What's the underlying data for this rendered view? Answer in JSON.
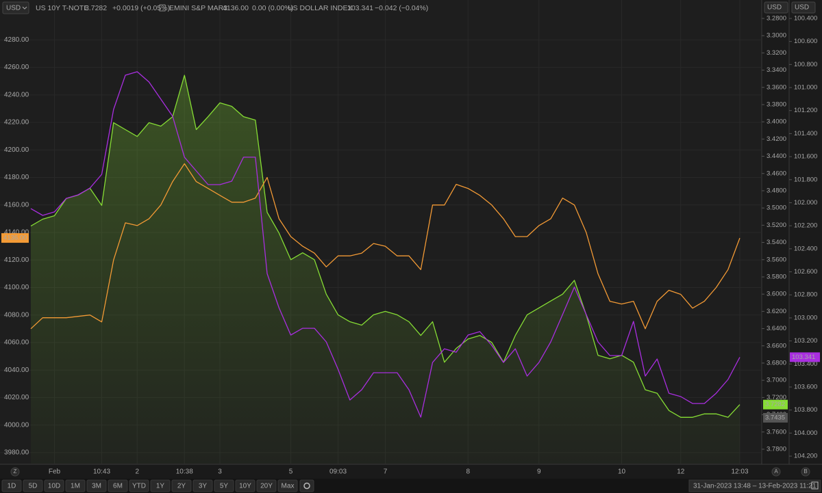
{
  "chart_data": {
    "type": "line",
    "currency_labels": [
      "USD",
      "USD",
      "USD"
    ],
    "axis_buttons": [
      "Z",
      "A",
      "B"
    ],
    "categories": [
      null,
      null,
      "Feb",
      null,
      null,
      null,
      "10:43",
      null,
      null,
      "2",
      null,
      null,
      null,
      "10:38",
      null,
      null,
      "3",
      null,
      null,
      null,
      null,
      null,
      "5",
      null,
      null,
      null,
      "09:03",
      null,
      null,
      null,
      "7",
      null,
      null,
      null,
      null,
      null,
      null,
      "8",
      null,
      null,
      null,
      null,
      null,
      "9",
      null,
      null,
      null,
      null,
      null,
      null,
      "10",
      null,
      null,
      null,
      null,
      "12",
      null,
      null,
      null,
      null,
      "12:03"
    ],
    "series": [
      {
        "name": "US 10Y T-NOTE",
        "color": "#86dd34",
        "axis": "y2",
        "area": true,
        "last": "3.7282",
        "change": "+0.0019 (+0.05%)",
        "ref_price": 3.7435,
        "values": [
          3.521,
          3.513,
          3.509,
          3.489,
          3.485,
          3.477,
          3.497,
          3.401,
          3.409,
          3.417,
          3.401,
          3.405,
          3.394,
          3.346,
          3.409,
          3.394,
          3.378,
          3.382,
          3.394,
          3.398,
          3.505,
          3.529,
          3.56,
          3.552,
          3.56,
          3.6,
          3.624,
          3.632,
          3.636,
          3.624,
          3.62,
          3.624,
          3.632,
          3.648,
          3.632,
          3.679,
          3.663,
          3.652,
          3.648,
          3.656,
          3.679,
          3.648,
          3.624,
          3.616,
          3.608,
          3.6,
          3.584,
          3.624,
          3.671,
          3.675,
          3.671,
          3.679,
          3.711,
          3.715,
          3.735,
          3.743,
          3.743,
          3.739,
          3.739,
          3.743,
          3.7282
        ]
      },
      {
        "name": "EMINI S&P MAR3",
        "color": "#f39a35",
        "axis": "y",
        "last": "4136.00",
        "change": "0.00 (0.00%)",
        "values": [
          4070,
          4078,
          4078,
          4078,
          4079,
          4080,
          4075,
          4120,
          4147,
          4145,
          4150,
          4160,
          4177,
          4190,
          4177,
          4172,
          4167,
          4162,
          4162,
          4165,
          4180,
          4150,
          4137,
          4130,
          4125,
          4115,
          4123,
          4123,
          4125,
          4132,
          4130,
          4123,
          4123,
          4113,
          4160,
          4160,
          4175,
          4172,
          4167,
          4160,
          4150,
          4137,
          4137,
          4145,
          4150,
          4165,
          4160,
          4140,
          4110,
          4090,
          4088,
          4090,
          4070,
          4090,
          4098,
          4095,
          4085,
          4090,
          4100,
          4113,
          4136
        ]
      },
      {
        "name": "US DOLLAR INDEX",
        "color": "#a92ee0",
        "axis": "y3",
        "last": "103.341",
        "change": "−0.042 (−0.04%)",
        "values": [
          102.051,
          102.11,
          102.08,
          101.962,
          101.932,
          101.873,
          101.754,
          101.19,
          100.893,
          100.863,
          100.952,
          101.101,
          101.249,
          101.605,
          101.724,
          101.843,
          101.843,
          101.813,
          101.605,
          101.605,
          102.615,
          102.912,
          103.149,
          103.09,
          103.09,
          103.208,
          103.446,
          103.713,
          103.624,
          103.476,
          103.476,
          103.476,
          103.624,
          103.862,
          103.387,
          103.268,
          103.298,
          103.149,
          103.119,
          103.238,
          103.387,
          103.268,
          103.505,
          103.387,
          103.208,
          102.971,
          102.733,
          102.971,
          103.208,
          103.327,
          103.327,
          103.03,
          103.505,
          103.357,
          103.654,
          103.683,
          103.743,
          103.743,
          103.654,
          103.535,
          103.341
        ]
      }
    ],
    "ylim": [
      3972,
      4309
    ],
    "yticks": [
      {
        "value": 3980,
        "label": "3980.00"
      },
      {
        "value": 4000,
        "label": "4000.00"
      },
      {
        "value": 4020,
        "label": "4020.00"
      },
      {
        "value": 4040,
        "label": "4040.00"
      },
      {
        "value": 4060,
        "label": "4060.00"
      },
      {
        "value": 4080,
        "label": "4080.00"
      },
      {
        "value": 4100,
        "label": "4100.00"
      },
      {
        "value": 4120,
        "label": "4120.00"
      },
      {
        "value": 4140,
        "label": "4140.00"
      },
      {
        "value": 4160,
        "label": "4160.00"
      },
      {
        "value": 4180,
        "label": "4180.00"
      },
      {
        "value": 4200,
        "label": "4200.00"
      },
      {
        "value": 4220,
        "label": "4220.00"
      },
      {
        "value": 4240,
        "label": "4240.00"
      },
      {
        "value": 4260,
        "label": "4260.00"
      },
      {
        "value": 4280,
        "label": "4280.00"
      }
    ],
    "y2lim": [
      3.7967,
      3.2586
    ],
    "y2ticks": [
      {
        "value": 3.28,
        "label": "3.2800"
      },
      {
        "value": 3.3,
        "label": "3.3000"
      },
      {
        "value": 3.32,
        "label": "3.3200"
      },
      {
        "value": 3.34,
        "label": "3.3400"
      },
      {
        "value": 3.36,
        "label": "3.3600"
      },
      {
        "value": 3.38,
        "label": "3.3800"
      },
      {
        "value": 3.4,
        "label": "3.4000"
      },
      {
        "value": 3.42,
        "label": "3.4200"
      },
      {
        "value": 3.44,
        "label": "3.4400"
      },
      {
        "value": 3.46,
        "label": "3.4600"
      },
      {
        "value": 3.48,
        "label": "3.4800"
      },
      {
        "value": 3.5,
        "label": "3.5000"
      },
      {
        "value": 3.52,
        "label": "3.5200"
      },
      {
        "value": 3.54,
        "label": "3.5400"
      },
      {
        "value": 3.56,
        "label": "3.5600"
      },
      {
        "value": 3.58,
        "label": "3.5800"
      },
      {
        "value": 3.6,
        "label": "3.6000"
      },
      {
        "value": 3.62,
        "label": "3.6200"
      },
      {
        "value": 3.64,
        "label": "3.6400"
      },
      {
        "value": 3.66,
        "label": "3.6600"
      },
      {
        "value": 3.68,
        "label": "3.6800"
      },
      {
        "value": 3.7,
        "label": "3.7000"
      },
      {
        "value": 3.72,
        "label": "3.7200"
      },
      {
        "value": 3.74,
        "label": "3.7400"
      },
      {
        "value": 3.76,
        "label": "3.7600"
      },
      {
        "value": 3.78,
        "label": "3.7800"
      }
    ],
    "y3lim": [
      104.265,
      100.24
    ],
    "y3ticks": [
      {
        "value": 100.4,
        "label": "100.400"
      },
      {
        "value": 100.6,
        "label": "100.600"
      },
      {
        "value": 100.8,
        "label": "100.800"
      },
      {
        "value": 101,
        "label": "101.000"
      },
      {
        "value": 101.2,
        "label": "101.200"
      },
      {
        "value": 101.4,
        "label": "101.400"
      },
      {
        "value": 101.6,
        "label": "101.600"
      },
      {
        "value": 101.8,
        "label": "101.800"
      },
      {
        "value": 102,
        "label": "102.000"
      },
      {
        "value": 102.2,
        "label": "102.200"
      },
      {
        "value": 102.4,
        "label": "102.400"
      },
      {
        "value": 102.6,
        "label": "102.600"
      },
      {
        "value": 102.8,
        "label": "102.800"
      },
      {
        "value": 103,
        "label": "103.000"
      },
      {
        "value": 103.2,
        "label": "103.200"
      },
      {
        "value": 103.4,
        "label": "103.400"
      },
      {
        "value": 103.6,
        "label": "103.600"
      },
      {
        "value": 103.8,
        "label": "103.800"
      },
      {
        "value": 104,
        "label": "104.000"
      },
      {
        "value": 104.2,
        "label": "104.200"
      }
    ],
    "grid": true,
    "range_buttons": [
      "1D",
      "5D",
      "10D",
      "1M",
      "3M",
      "6M",
      "YTD",
      "1Y",
      "2Y",
      "3Y",
      "5Y",
      "10Y",
      "20Y",
      "Max"
    ],
    "date_range": "31-Jan-2023 13:48 – 13-Feb-2023 11:21"
  }
}
